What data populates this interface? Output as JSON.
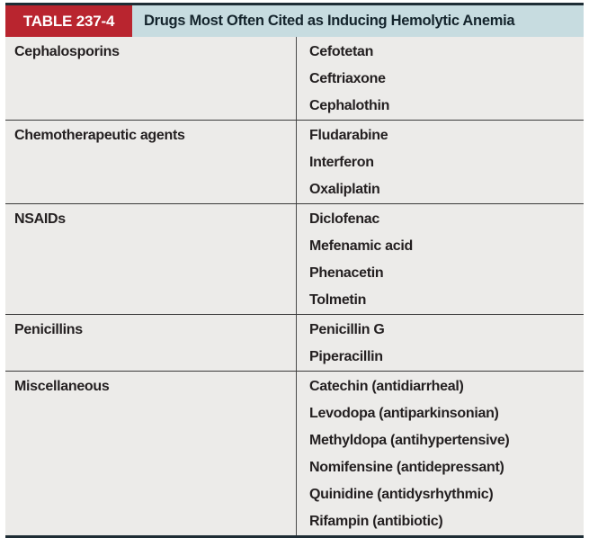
{
  "table": {
    "label": "TABLE 237-4",
    "title": "Drugs Most Often Cited as Inducing Hemolytic Anemia",
    "groups": [
      {
        "category": "Cephalosporins",
        "drugs": [
          "Cefotetan",
          "Ceftriaxone",
          "Cephalothin"
        ]
      },
      {
        "category": "Chemotherapeutic agents",
        "drugs": [
          "Fludarabine",
          "Interferon",
          "Oxaliplatin"
        ]
      },
      {
        "category": "NSAIDs",
        "drugs": [
          "Diclofenac",
          "Mefenamic acid",
          "Phenacetin",
          "Tolmetin"
        ]
      },
      {
        "category": "Penicillins",
        "drugs": [
          "Penicillin G",
          "Piperacillin"
        ]
      },
      {
        "category": "Miscellaneous",
        "drugs": [
          "Catechin (antidiarrheal)",
          "Levodopa (antiparkinsonian)",
          "Methyldopa (antihypertensive)",
          "Nomifensine (antidepressant)",
          "Quinidine (antidysrhythmic)",
          "Rifampin (antibiotic)"
        ]
      }
    ]
  },
  "colors": {
    "accent_red": "#B9252F",
    "header_strip": "#C7DCE0",
    "body_background": "#ECEBE9",
    "dark_rule": "#1E2D35",
    "row_separator": "#3A3A3A",
    "column_divider": "#4A4A4A",
    "body_text": "#231F20",
    "title_text": "#14242C",
    "label_text": "#FFFFFF"
  }
}
